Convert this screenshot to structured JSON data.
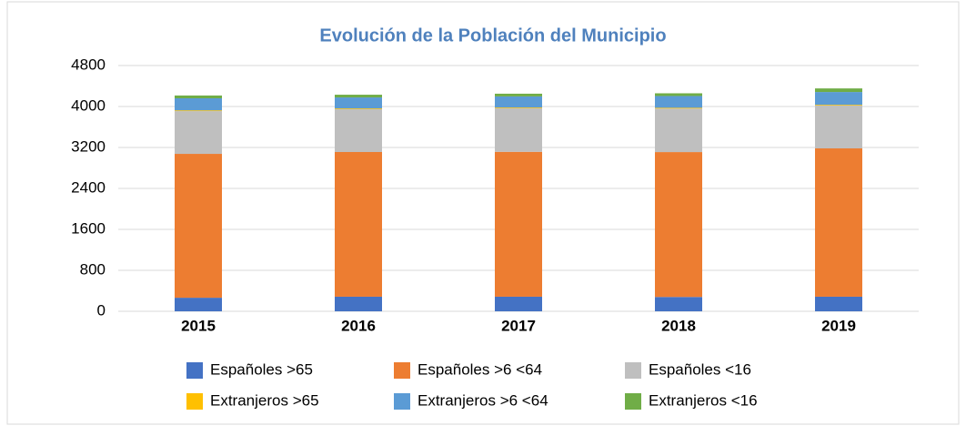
{
  "chart_data": {
    "type": "stacked_bar",
    "title": "Evolución de la Población del Municipio",
    "categories": [
      "2015",
      "2016",
      "2017",
      "2018",
      "2019"
    ],
    "series": [
      {
        "name": "Españoles >65",
        "color": "#4472c4",
        "values": [
          265,
          285,
          285,
          280,
          285
        ]
      },
      {
        "name": "Españoles >6 <64",
        "color": "#ed7d31",
        "values": [
          2810,
          2826,
          2830,
          2830,
          2897
        ]
      },
      {
        "name": "Españoles <16",
        "color": "#bfbfbf",
        "values": [
          835,
          836,
          850,
          850,
          836
        ]
      },
      {
        "name": "Extranjeros >65",
        "color": "#ffc000",
        "values": [
          15,
          15,
          15,
          15,
          15
        ]
      },
      {
        "name": "Extranjeros >6 <64",
        "color": "#5b9bd5",
        "values": [
          235,
          215,
          217,
          230,
          250
        ]
      },
      {
        "name": "Extranjeros <16",
        "color": "#70ad47",
        "values": [
          55,
          53,
          53,
          53,
          70
        ]
      }
    ],
    "ylim": [
      0,
      4800
    ],
    "yticks": [
      0,
      800,
      1600,
      2400,
      3200,
      4000,
      4800
    ],
    "grid": true,
    "legend": "bottom"
  }
}
